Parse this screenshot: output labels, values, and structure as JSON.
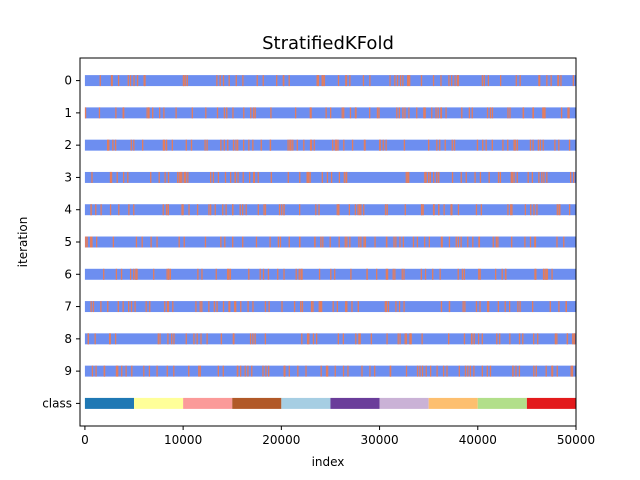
{
  "chart_data": {
    "type": "cv-split-visualization",
    "title": "StratifiedKFold",
    "xlabel": "index",
    "ylabel": "iteration",
    "xlim": [
      -500,
      50000
    ],
    "x_ticks": [
      0,
      10000,
      20000,
      30000,
      40000,
      50000
    ],
    "y_tick_labels": [
      "0",
      "1",
      "2",
      "3",
      "4",
      "5",
      "6",
      "7",
      "8",
      "9",
      "class"
    ],
    "n_samples": 50000,
    "n_splits": 10,
    "grid": false,
    "colors": {
      "train": "#6d8ef0",
      "test": "#e37d5e",
      "class_colors": [
        "#1f78b4",
        "#ffff99",
        "#fb9a99",
        "#b15928",
        "#a6cee3",
        "#6a3d9a",
        "#cab2d6",
        "#fdbf6f",
        "#b2df8a",
        "#e31a1c"
      ]
    },
    "class_segments": [
      {
        "class": 0,
        "start": 0,
        "end": 5000
      },
      {
        "class": 1,
        "start": 5000,
        "end": 10000
      },
      {
        "class": 2,
        "start": 10000,
        "end": 15000
      },
      {
        "class": 3,
        "start": 15000,
        "end": 20000
      },
      {
        "class": 4,
        "start": 20000,
        "end": 25000
      },
      {
        "class": 5,
        "start": 25000,
        "end": 30000
      },
      {
        "class": 6,
        "start": 30000,
        "end": 35000
      },
      {
        "class": 7,
        "start": 35000,
        "end": 40000
      },
      {
        "class": 8,
        "start": 40000,
        "end": 45000
      },
      {
        "class": 9,
        "start": 45000,
        "end": 50000
      }
    ]
  }
}
